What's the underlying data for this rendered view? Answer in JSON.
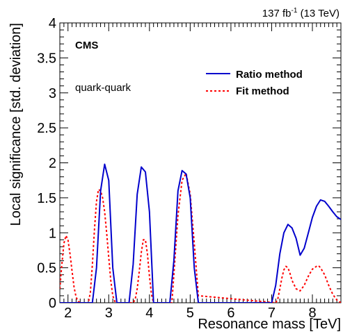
{
  "chart_data": {
    "type": "line",
    "title": "",
    "luminosity": {
      "prefix": "137 fb",
      "sup": "-1",
      "suffix": " (13 TeV)"
    },
    "experiment": "CMS",
    "annotation": "quark-quark",
    "xlabel": "Resonance mass [TeV]",
    "ylabel": "Local significance [std. deviation]",
    "xlim": [
      1.8,
      8.7
    ],
    "ylim": [
      0,
      4
    ],
    "x_ticks": [
      2,
      3,
      4,
      5,
      6,
      7,
      8
    ],
    "y_ticks": [
      0,
      0.5,
      1,
      1.5,
      2,
      2.5,
      3,
      3.5,
      4
    ],
    "y_tick_labels": [
      "0",
      "0.5",
      "1",
      "1.5",
      "2",
      "2.5",
      "3",
      "3.5",
      "4"
    ],
    "legend_position": "top-right",
    "series": [
      {
        "name": "Ratio method",
        "color": "#0000cc",
        "style": "solid",
        "x": [
          1.8,
          2.5,
          2.6,
          2.7,
          2.8,
          2.9,
          3.0,
          3.1,
          3.2,
          3.5,
          3.6,
          3.7,
          3.8,
          3.9,
          4.0,
          4.1,
          4.5,
          4.6,
          4.7,
          4.8,
          4.9,
          5.0,
          5.1,
          5.2,
          7.0,
          7.1,
          7.2,
          7.3,
          7.4,
          7.5,
          7.6,
          7.7,
          7.8,
          7.9,
          8.0,
          8.1,
          8.2,
          8.3,
          8.4,
          8.5,
          8.6,
          8.7
        ],
        "y": [
          0,
          0,
          0,
          0.5,
          1.6,
          1.98,
          1.75,
          0.5,
          0,
          0,
          0.55,
          1.55,
          1.94,
          1.87,
          1.3,
          0,
          0,
          0.6,
          1.6,
          1.89,
          1.84,
          1.5,
          0.5,
          0,
          0,
          0.25,
          0.7,
          1.0,
          1.12,
          1.07,
          0.92,
          0.68,
          0.78,
          1.0,
          1.22,
          1.38,
          1.47,
          1.45,
          1.38,
          1.3,
          1.23,
          1.19
        ]
      },
      {
        "name": "Fit method",
        "color": "#ff0000",
        "style": "dashed",
        "x": [
          1.8,
          1.85,
          1.9,
          1.95,
          2.0,
          2.05,
          2.1,
          2.15,
          2.2,
          2.25,
          2.3,
          2.35,
          2.5,
          2.55,
          2.6,
          2.65,
          2.7,
          2.75,
          2.8,
          2.85,
          2.9,
          2.95,
          3.0,
          3.05,
          3.1,
          3.15,
          3.2,
          3.6,
          3.65,
          3.7,
          3.75,
          3.8,
          3.85,
          3.9,
          3.95,
          4.0,
          4.05,
          4.1,
          4.55,
          4.6,
          4.7,
          4.8,
          4.9,
          5.0,
          5.1,
          5.2,
          7.1,
          7.15,
          7.2,
          7.25,
          7.3,
          7.35,
          7.4,
          7.45,
          7.5,
          7.6,
          7.7,
          7.8,
          7.9,
          8.0,
          8.1,
          8.15,
          8.2,
          8.3,
          8.4,
          8.5,
          8.6,
          8.7
        ],
        "y": [
          0.2,
          0.55,
          0.85,
          0.96,
          0.9,
          0.7,
          0.45,
          0.22,
          0.08,
          0.02,
          0,
          0,
          0,
          0.15,
          0.55,
          1.05,
          1.45,
          1.62,
          1.6,
          1.5,
          1.3,
          1.0,
          0.65,
          0.32,
          0.1,
          0.02,
          0,
          0,
          0.05,
          0.2,
          0.45,
          0.72,
          0.9,
          0.9,
          0.7,
          0.38,
          0.12,
          0,
          0,
          0.4,
          1.25,
          1.75,
          1.85,
          1.55,
          0.85,
          0.1,
          0,
          0.05,
          0.2,
          0.35,
          0.47,
          0.52,
          0.5,
          0.42,
          0.32,
          0.2,
          0.17,
          0.25,
          0.38,
          0.48,
          0.52,
          0.53,
          0.5,
          0.4,
          0.25,
          0.12,
          0.04,
          0
        ]
      }
    ]
  }
}
